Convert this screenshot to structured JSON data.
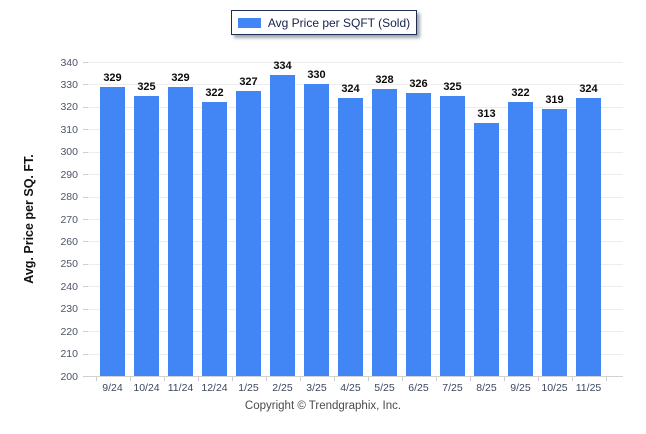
{
  "legend": {
    "label": "Avg Price per SQFT (Sold)",
    "swatch_color": "#4285f4"
  },
  "chart_data": {
    "type": "bar",
    "title": "",
    "series_name": "Avg Price per SQFT (Sold)",
    "categories": [
      "9/24",
      "10/24",
      "11/24",
      "12/24",
      "1/25",
      "2/25",
      "3/25",
      "4/25",
      "5/25",
      "6/25",
      "7/25",
      "8/25",
      "9/25",
      "10/25",
      "11/25"
    ],
    "values": [
      329,
      325,
      329,
      322,
      327,
      334,
      330,
      324,
      328,
      326,
      325,
      313,
      322,
      319,
      324
    ],
    "xlabel": "",
    "ylabel": "Avg. Price per SQ. FT.",
    "ylim": [
      200,
      340
    ],
    "ytick_step": 10,
    "yticks": [
      200,
      210,
      220,
      230,
      240,
      250,
      260,
      270,
      280,
      290,
      300,
      310,
      320,
      330,
      340
    ],
    "grid": true,
    "legend_position": "top-center",
    "bar_color": "#4285f4",
    "data_labels": true
  },
  "footer": {
    "copyright": "Copyright © Trendgraphix, Inc."
  },
  "colors": {
    "bar": "#4285f4",
    "gridline": "#ededed",
    "axis_line": "#d2d2d2",
    "legend_border": "#1f2d54",
    "value_label": "#0b0b0b",
    "tick_label": "#3c4660",
    "copyright_text": "#4b4b4b",
    "background": "#ffffff"
  }
}
